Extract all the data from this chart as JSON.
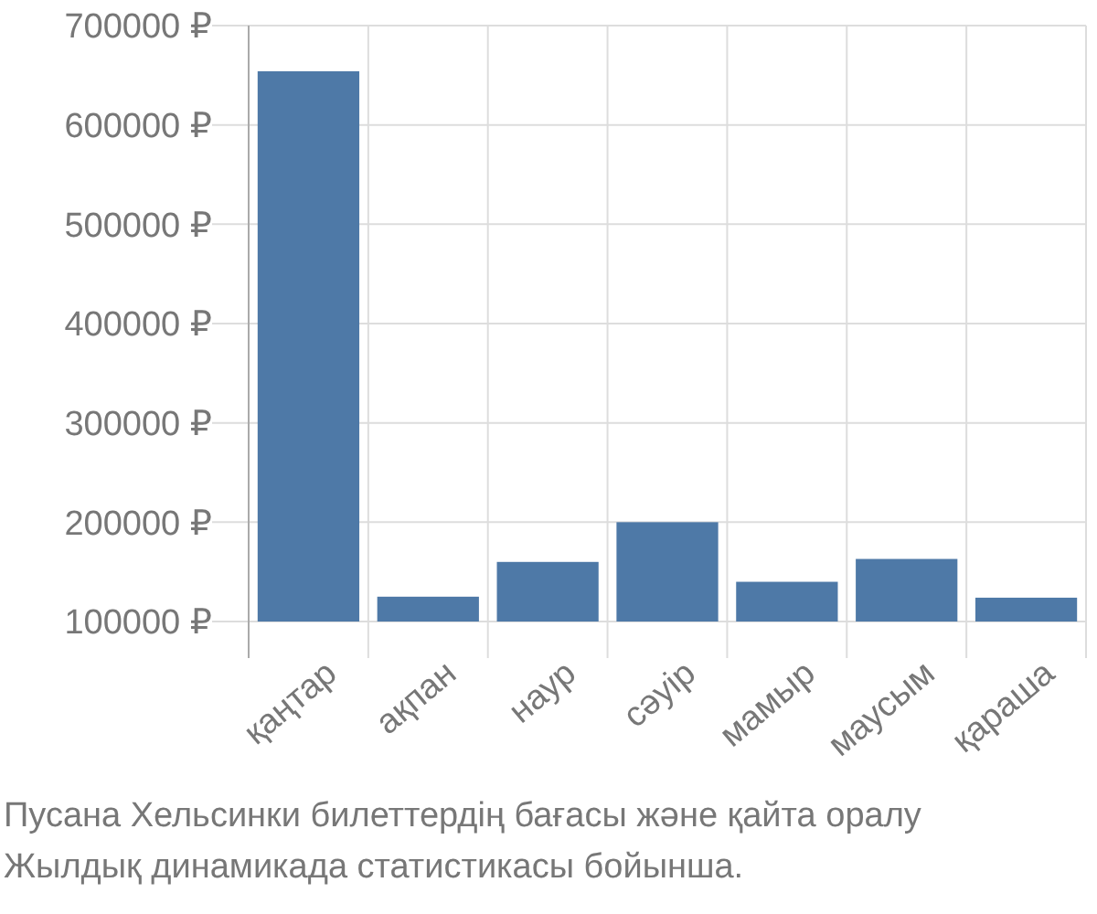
{
  "chart_data": {
    "type": "bar",
    "categories": [
      "қаңтар",
      "ақпан",
      "наур",
      "сәуір",
      "мамыр",
      "маусым",
      "қараша"
    ],
    "values": [
      654000,
      125000,
      160000,
      200000,
      140000,
      163000,
      124000
    ],
    "color": "#4e79a7",
    "ylim": [
      100000,
      700000
    ],
    "yticks": [
      {
        "value": 100000,
        "label": "100000 ₽"
      },
      {
        "value": 200000,
        "label": "200000 ₽"
      },
      {
        "value": 300000,
        "label": "300000 ₽"
      },
      {
        "value": 400000,
        "label": "400000 ₽"
      },
      {
        "value": 500000,
        "label": "500000 ₽"
      },
      {
        "value": 600000,
        "label": "600000 ₽"
      },
      {
        "value": 700000,
        "label": "700000 ₽"
      }
    ],
    "grid": true,
    "annotations": [
      "Пусана Хельсинки билеттердің бағасы және қайта оралу",
      "Жылдық динамикада статистикасы бойынша."
    ]
  }
}
